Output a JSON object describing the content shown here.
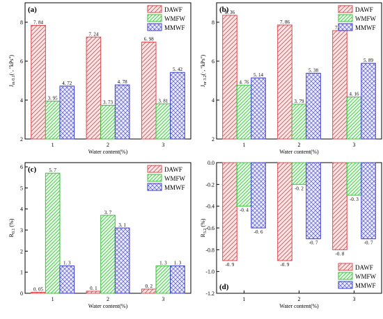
{
  "figure": {
    "colors": {
      "DAWF": "#e0474c",
      "WMFW": "#3fbf3f",
      "MMWF": "#3b3bd6"
    },
    "legend_labels": [
      "DAWF",
      "WMFW",
      "MMWF"
    ]
  },
  "chart_data": [
    {
      "panel": "(a)",
      "type": "bar",
      "categories": [
        "1",
        "2",
        "3"
      ],
      "xlabel": "Water content(%)",
      "ylabel": "J_{m 0.1}(·, ''kPs'')",
      "ylim": [
        2,
        9
      ],
      "yticks": [
        "2",
        "4",
        "6",
        "8"
      ],
      "legend_position": "top-right",
      "series": [
        {
          "name": "DAWF",
          "values": [
            7.84,
            7.24,
            6.98
          ],
          "labels": [
            "7. 84",
            "7. 24",
            "6. 98"
          ]
        },
        {
          "name": "WMFW",
          "values": [
            3.95,
            3.73,
            3.81
          ],
          "labels": [
            "3. 95",
            "3. 73",
            "3. 81"
          ]
        },
        {
          "name": "MMWF",
          "values": [
            4.72,
            4.78,
            5.42
          ],
          "labels": [
            "4. 72",
            "4. 78",
            "5. 42"
          ]
        }
      ]
    },
    {
      "panel": "(b)",
      "type": "bar",
      "categories": [
        "1",
        "2",
        "3"
      ],
      "xlabel": "Water content(%)",
      "ylabel": "J_{nr 3.2}(·, ''kPs'')",
      "ylim": [
        2,
        9
      ],
      "yticks": [
        "2",
        "4",
        "6",
        "8"
      ],
      "legend_position": "top-right",
      "series": [
        {
          "name": "DAWF",
          "values": [
            8.36,
            7.86,
            7.57
          ],
          "labels": [
            "8. 36",
            "7. 86",
            "7. 57"
          ]
        },
        {
          "name": "WMFW",
          "values": [
            4.76,
            3.79,
            4.16
          ],
          "labels": [
            "4. 76",
            "3. 79",
            "4. 16"
          ]
        },
        {
          "name": "MMWF",
          "values": [
            5.14,
            5.38,
            5.89
          ],
          "labels": [
            "5. 14",
            "5. 38",
            "5. 89"
          ]
        }
      ]
    },
    {
      "panel": "(c)",
      "type": "bar",
      "categories": [
        "1",
        "2",
        "3"
      ],
      "xlabel": "Water content(%)",
      "ylabel": "R_{0.1} (%)",
      "ylim": [
        0,
        6.2
      ],
      "yticks": [
        "0",
        "1",
        "2",
        "3",
        "4",
        "5",
        "6"
      ],
      "legend_position": "top-right",
      "series": [
        {
          "name": "DAWF",
          "values": [
            0.05,
            0.1,
            0.2
          ],
          "labels": [
            "0. 05",
            "0. 1",
            "0. 2"
          ]
        },
        {
          "name": "WMFW",
          "values": [
            5.7,
            3.7,
            1.3
          ],
          "labels": [
            "5. 7",
            "3. 7",
            "1. 3"
          ]
        },
        {
          "name": "MMWF",
          "values": [
            1.3,
            3.1,
            1.3
          ],
          "labels": [
            "1. 3",
            "3. 1",
            "1. 3"
          ]
        }
      ]
    },
    {
      "panel": "(d)",
      "type": "bar",
      "categories": [
        "1",
        "2",
        "3"
      ],
      "xlabel": "Water content(%)",
      "ylabel": "R_{3.2} (%)",
      "ylim": [
        -1.2,
        0
      ],
      "yticks": [
        "-1.2",
        "-1.0",
        "-0.8",
        "-0.6",
        "-0.4",
        "-0.2",
        "0.0"
      ],
      "legend_position": "bottom-right",
      "series": [
        {
          "name": "DAWF",
          "values": [
            -0.9,
            -0.9,
            -0.8
          ],
          "labels": [
            "-0. 9",
            "-0. 9",
            "-0. 8"
          ]
        },
        {
          "name": "WMFW",
          "values": [
            -0.4,
            -0.2,
            -0.3
          ],
          "labels": [
            "-0. 4",
            "-0. 2",
            "-0. 3"
          ]
        },
        {
          "name": "MMWF",
          "values": [
            -0.6,
            -0.7,
            -0.7
          ],
          "labels": [
            "-0. 6",
            "-0. 7",
            "-0. 7"
          ]
        }
      ]
    }
  ]
}
